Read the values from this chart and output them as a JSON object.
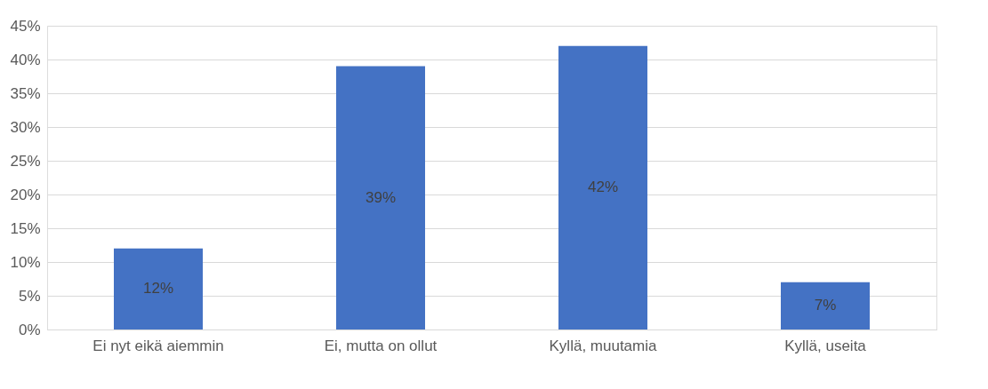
{
  "chart_data": {
    "type": "bar",
    "categories": [
      "Ei nyt eikä aiemmin",
      "Ei, mutta on ollut",
      "Kyllä, muutamia",
      "Kyllä, useita"
    ],
    "values": [
      12,
      39,
      42,
      7
    ],
    "value_labels": [
      "12%",
      "39%",
      "42%",
      "7%"
    ],
    "color": "#4472c4",
    "ylim": [
      0,
      45
    ],
    "yticks": [
      {
        "value": 0,
        "label": "0%"
      },
      {
        "value": 5,
        "label": "5%"
      },
      {
        "value": 10,
        "label": "10%"
      },
      {
        "value": 15,
        "label": "15%"
      },
      {
        "value": 20,
        "label": "20%"
      },
      {
        "value": 25,
        "label": "25%"
      },
      {
        "value": 30,
        "label": "30%"
      },
      {
        "value": 35,
        "label": "35%"
      },
      {
        "value": 40,
        "label": "40%"
      },
      {
        "value": 45,
        "label": "45%"
      }
    ],
    "grid": "y"
  }
}
